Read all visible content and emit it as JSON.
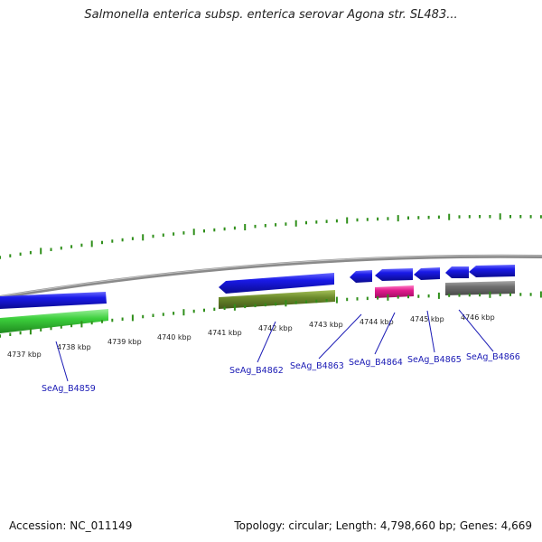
{
  "title": "Salmonella enterica subsp. enterica serovar Agona str. SL483...",
  "footer": {
    "accession": "Accession: NC_011149",
    "info": "Topology: circular; Length: 4,798,660 bp; Genes: 4,669"
  },
  "colors": {
    "backbone": "#8a8a8a",
    "ticks": "#2f8f1a",
    "gene_blue": "#1717e0",
    "gene_green": "#3ccf3c",
    "gene_olive": "#6b8a2a",
    "gene_pink": "#e01a8c",
    "gene_gray": "#6e6e6e",
    "label": "#1a1ab5"
  },
  "scale": {
    "unit": "kbp",
    "labels": [
      "4737 kbp",
      "4738 kbp",
      "4739 kbp",
      "4740 kbp",
      "4741 kbp",
      "4742 kbp",
      "4743 kbp",
      "4744 kbp",
      "4745 kbp",
      "4746 kbp"
    ]
  },
  "genes": [
    {
      "id": "SeAg_B4859"
    },
    {
      "id": "SeAg_B4862"
    },
    {
      "id": "SeAg_B4863"
    },
    {
      "id": "SeAg_B4864"
    },
    {
      "id": "SeAg_B4865"
    },
    {
      "id": "SeAg_B4866"
    }
  ]
}
